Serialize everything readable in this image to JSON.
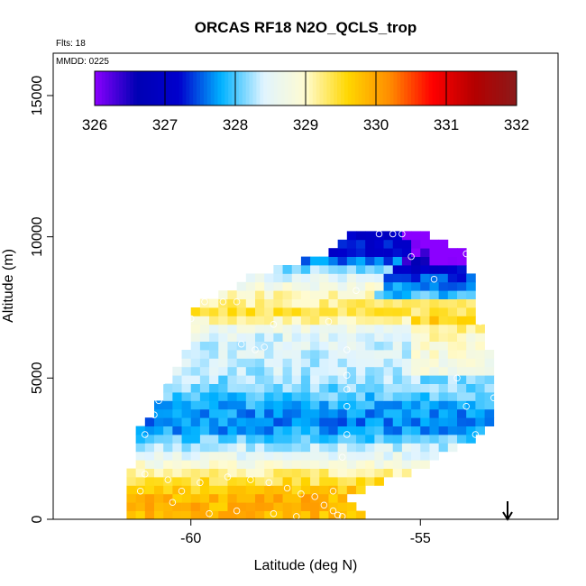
{
  "chart_data": {
    "type": "heatmap",
    "title": "ORCAS RF18 N2O_QCLS_trop",
    "xlabel": "Latitude (deg N)",
    "ylabel": "Altitude (m)",
    "annotations": {
      "flights": "Flts: 18",
      "date": "MMDD: 0225"
    },
    "xlim": [
      -63,
      -52
    ],
    "ylim": [
      0,
      16500
    ],
    "x_ticks": [
      -60,
      -55
    ],
    "x_tick_labels": [
      "-60",
      "-55"
    ],
    "y_ticks": [
      0,
      5000,
      10000,
      15000
    ],
    "y_tick_labels": [
      "0",
      "5000",
      "10000",
      "15000"
    ],
    "colorbar": {
      "min": 326,
      "max": 332,
      "ticks": [
        326,
        327,
        328,
        329,
        330,
        331,
        332
      ],
      "tick_labels": [
        "326",
        "327",
        "328",
        "329",
        "330",
        "331",
        "332"
      ],
      "colors": [
        "#8b00ff",
        "#0000b4",
        "#0000cd",
        "#00b2ff",
        "#e0f4ff",
        "#fffbd0",
        "#ffd700",
        "#ff8c00",
        "#ff0000",
        "#b40000",
        "#8b1a1a"
      ]
    },
    "grid": false,
    "arrow_marker_lat": -53.1,
    "profile": [
      {
        "alt": 0,
        "lat_min": -61.2,
        "lat_max": -56.2
      },
      {
        "alt": 800,
        "lat_min": -61.3,
        "lat_max": -56.8
      },
      {
        "alt": 1800,
        "lat_min": -61.2,
        "lat_max": -55.1
      },
      {
        "alt": 3200,
        "lat_min": -61.0,
        "lat_max": -53.6
      },
      {
        "alt": 4500,
        "lat_min": -60.5,
        "lat_max": -53.5
      },
      {
        "alt": 6000,
        "lat_min": -60.0,
        "lat_max": -53.6
      },
      {
        "alt": 7500,
        "lat_min": -59.8,
        "lat_max": -53.9
      },
      {
        "alt": 8700,
        "lat_min": -58.5,
        "lat_max": -54.0
      },
      {
        "alt": 9500,
        "lat_min": -56.8,
        "lat_max": -54.2
      },
      {
        "alt": 10200,
        "lat_min": -56.3,
        "lat_max": -55.0
      }
    ],
    "n2o_profile": [
      {
        "alt": 0,
        "value": 329.8
      },
      {
        "alt": 700,
        "value": 329.9
      },
      {
        "alt": 1300,
        "value": 329.5
      },
      {
        "alt": 2000,
        "value": 328.8
      },
      {
        "alt": 2600,
        "value": 328.3
      },
      {
        "alt": 3300,
        "value": 327.6
      },
      {
        "alt": 4000,
        "value": 327.8
      },
      {
        "alt": 4600,
        "value": 328.1
      },
      {
        "alt": 5300,
        "value": 328.3
      },
      {
        "alt": 6000,
        "value": 328.4
      },
      {
        "alt": 6600,
        "value": 328.5
      },
      {
        "alt": 7300,
        "value": 329.4
      },
      {
        "alt": 8000,
        "value": 329.0
      },
      {
        "alt": 8700,
        "value": 328.4
      },
      {
        "alt": 9300,
        "value": 327.3
      },
      {
        "alt": 10200,
        "value": 327.0
      }
    ],
    "sample_points": [
      {
        "lat": -61.0,
        "alt": 3000
      },
      {
        "lat": -60.8,
        "alt": 3700
      },
      {
        "lat": -60.7,
        "alt": 4200
      },
      {
        "lat": -60.6,
        "alt": 4900
      },
      {
        "lat": -60.1,
        "alt": 6600
      },
      {
        "lat": -60.0,
        "alt": 7100
      },
      {
        "lat": -59.7,
        "alt": 7700
      },
      {
        "lat": -59.3,
        "alt": 7700
      },
      {
        "lat": -59.0,
        "alt": 7700
      },
      {
        "lat": -58.9,
        "alt": 6200
      },
      {
        "lat": -58.6,
        "alt": 6000
      },
      {
        "lat": -58.4,
        "alt": 6100
      },
      {
        "lat": -58.2,
        "alt": 6900
      },
      {
        "lat": -57.0,
        "alt": 7000
      },
      {
        "lat": -56.6,
        "alt": 6000
      },
      {
        "lat": -56.6,
        "alt": 5100
      },
      {
        "lat": -56.6,
        "alt": 4600
      },
      {
        "lat": -56.6,
        "alt": 4000
      },
      {
        "lat": -56.6,
        "alt": 3000
      },
      {
        "lat": -56.7,
        "alt": 2200
      },
      {
        "lat": -56.4,
        "alt": 8100
      },
      {
        "lat": -55.9,
        "alt": 10100
      },
      {
        "lat": -55.6,
        "alt": 10100
      },
      {
        "lat": -55.4,
        "alt": 10100
      },
      {
        "lat": -55.2,
        "alt": 9300
      },
      {
        "lat": -54.7,
        "alt": 8500
      },
      {
        "lat": -54.0,
        "alt": 9400
      },
      {
        "lat": -53.7,
        "alt": 7000
      },
      {
        "lat": -54.2,
        "alt": 5000
      },
      {
        "lat": -54.0,
        "alt": 4000
      },
      {
        "lat": -53.8,
        "alt": 3000
      },
      {
        "lat": -53.4,
        "alt": 4300
      },
      {
        "lat": -61.0,
        "alt": 1600
      },
      {
        "lat": -60.5,
        "alt": 1400
      },
      {
        "lat": -59.8,
        "alt": 1300
      },
      {
        "lat": -59.2,
        "alt": 1500
      },
      {
        "lat": -58.7,
        "alt": 1400
      },
      {
        "lat": -58.3,
        "alt": 1300
      },
      {
        "lat": -57.9,
        "alt": 1100
      },
      {
        "lat": -57.6,
        "alt": 900
      },
      {
        "lat": -57.3,
        "alt": 800
      },
      {
        "lat": -57.1,
        "alt": 500
      },
      {
        "lat": -56.9,
        "alt": 300
      },
      {
        "lat": -56.8,
        "alt": 150
      },
      {
        "lat": -56.7,
        "alt": 100
      },
      {
        "lat": -55.4,
        "alt": 1200
      },
      {
        "lat": -55.0,
        "alt": 1000
      },
      {
        "lat": -55.8,
        "alt": 700
      },
      {
        "lat": -57.7,
        "alt": 100
      },
      {
        "lat": -58.2,
        "alt": 200
      },
      {
        "lat": -59.0,
        "alt": 300
      },
      {
        "lat": -59.6,
        "alt": 200
      },
      {
        "lat": -60.4,
        "alt": 600
      },
      {
        "lat": -61.1,
        "alt": 1000
      },
      {
        "lat": -60.2,
        "alt": 1000
      },
      {
        "lat": -56.9,
        "alt": 1000
      }
    ]
  }
}
